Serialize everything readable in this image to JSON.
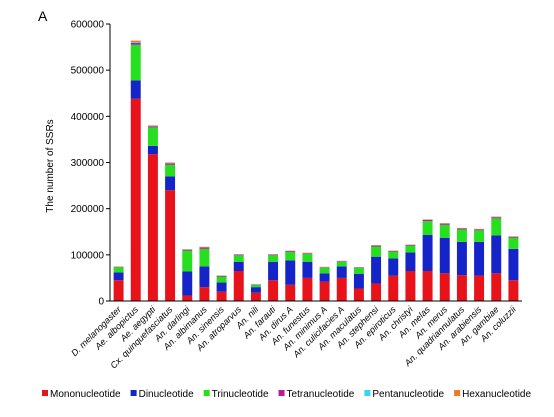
{
  "panel_label": "A",
  "chart_data": {
    "type": "bar",
    "stacked": true,
    "title": "",
    "xlabel": "",
    "ylabel": "The number of SSRs",
    "ylim": [
      0,
      600000
    ],
    "yticks": [
      0,
      100000,
      200000,
      300000,
      400000,
      500000,
      600000
    ],
    "ytick_labels": [
      "0",
      "100000",
      "200000",
      "300000",
      "400000",
      "500000",
      "600000"
    ],
    "grid": false,
    "legend_position": "bottom",
    "categories": [
      "D. melanogaster",
      "Ae. albopictus",
      "Ae. aegypti",
      "Cx. quinquefasciatus",
      "An. darlingi",
      "An. albimanus",
      "An. sinensis",
      "An. atroparvus",
      "An. nili",
      "An. farauti",
      "An. dirus A",
      "An. funestus",
      "An. minimus A",
      "An. culicifacies A",
      "An. maculatus",
      "An. stephensi",
      "An. epiroticus",
      "An. christyi",
      "An. melas",
      "An. merus",
      "An. quadriannulatus",
      "An. arabiensis",
      "An. gambiae",
      "An. coluzzii"
    ],
    "series": [
      {
        "name": "Mononucleotide",
        "color": "#e8121b",
        "values": [
          45000,
          438000,
          318000,
          240000,
          12000,
          30000,
          20000,
          65000,
          18000,
          45000,
          35000,
          50000,
          42000,
          50000,
          27000,
          38000,
          55000,
          65000,
          65000,
          60000,
          56000,
          55000,
          60000,
          45000
        ]
      },
      {
        "name": "Dinucleotide",
        "color": "#1424c9",
        "values": [
          17000,
          40000,
          18000,
          30000,
          52000,
          45000,
          20000,
          20000,
          12000,
          40000,
          53000,
          35000,
          18000,
          25000,
          32000,
          58000,
          37000,
          40000,
          78000,
          77000,
          72000,
          73000,
          82000,
          68000
        ]
      },
      {
        "name": "Trinucleotide",
        "color": "#26e01f",
        "values": [
          11000,
          77000,
          40000,
          25000,
          45000,
          38000,
          13000,
          14000,
          5000,
          14000,
          18000,
          17000,
          12000,
          10000,
          13000,
          22000,
          15000,
          15000,
          30000,
          28000,
          27000,
          25000,
          37000,
          24000
        ]
      },
      {
        "name": "Tetranucleotide",
        "color": "#b81a9c",
        "values": [
          1200,
          4000,
          2500,
          3000,
          2000,
          3000,
          1500,
          1500,
          800,
          1500,
          2000,
          1500,
          1200,
          1300,
          1000,
          2000,
          1500,
          1500,
          2500,
          2500,
          2000,
          2000,
          2500,
          2000
        ]
      },
      {
        "name": "Pentanucleotide",
        "color": "#35d7ec",
        "values": [
          300,
          2000,
          800,
          800,
          600,
          600,
          400,
          400,
          200,
          400,
          500,
          400,
          300,
          300,
          300,
          500,
          400,
          400,
          600,
          600,
          500,
          500,
          600,
          500
        ]
      },
      {
        "name": "Hexanucleotide",
        "color": "#f07a22",
        "values": [
          400,
          3000,
          1200,
          1200,
          800,
          900,
          600,
          600,
          300,
          600,
          700,
          600,
          500,
          500,
          400,
          800,
          600,
          600,
          900,
          900,
          800,
          800,
          900,
          800
        ]
      }
    ]
  }
}
